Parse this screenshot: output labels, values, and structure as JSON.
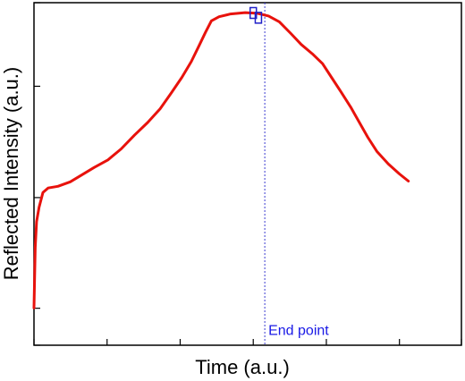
{
  "chart_data": {
    "type": "line",
    "title": "",
    "xlabel": "Time (a.u.)",
    "ylabel": "Reflected Intensity (a.u.)",
    "xlim": [
      0,
      100
    ],
    "ylim": [
      0,
      100
    ],
    "x_ticks": [
      0,
      17.1,
      34.2,
      51.3,
      68.4,
      85.5,
      100
    ],
    "y_ticks": [
      0,
      10.8,
      43.1,
      75.6,
      100
    ],
    "grid": false,
    "legend": "none",
    "tick_labels_shown": false,
    "series": [
      {
        "color": "#e8120c",
        "points": [
          [
            0,
            10.9
          ],
          [
            0.3,
            28.6
          ],
          [
            0.6,
            36.1
          ],
          [
            1.2,
            40.3
          ],
          [
            2.1,
            44.6
          ],
          [
            3.3,
            45.9
          ],
          [
            5.6,
            46.4
          ],
          [
            8.5,
            47.7
          ],
          [
            11.2,
            49.7
          ],
          [
            14.1,
            51.9
          ],
          [
            17.3,
            54.1
          ],
          [
            20.4,
            57.3
          ],
          [
            23.5,
            61.3
          ],
          [
            26.6,
            65.0
          ],
          [
            29.5,
            69.0
          ],
          [
            32.1,
            73.6
          ],
          [
            34.6,
            78.2
          ],
          [
            36.8,
            82.8
          ],
          [
            38.6,
            87.4
          ],
          [
            40.1,
            91.3
          ],
          [
            41.5,
            94.7
          ],
          [
            43.3,
            95.9
          ],
          [
            46.0,
            96.7
          ],
          [
            49.4,
            97.1
          ],
          [
            52.3,
            96.9
          ],
          [
            54.9,
            96.1
          ],
          [
            57.4,
            94.4
          ],
          [
            60.1,
            91.0
          ],
          [
            62.5,
            87.8
          ],
          [
            65.1,
            85.1
          ],
          [
            67.5,
            82.2
          ],
          [
            69.6,
            78.2
          ],
          [
            71.9,
            73.8
          ],
          [
            74.1,
            69.5
          ],
          [
            76.0,
            65.3
          ],
          [
            78.1,
            60.7
          ],
          [
            80.2,
            56.6
          ],
          [
            82.9,
            52.9
          ],
          [
            85.5,
            50.0
          ],
          [
            87.6,
            47.9
          ]
        ]
      }
    ],
    "markers": [
      {
        "x": 51.3,
        "y": 97.0,
        "color": "#2020c8"
      },
      {
        "x": 52.5,
        "y": 95.6,
        "color": "#2020c8"
      }
    ],
    "vline": {
      "x": 54.0,
      "label": "End point",
      "color": "#3b3bd0"
    }
  }
}
